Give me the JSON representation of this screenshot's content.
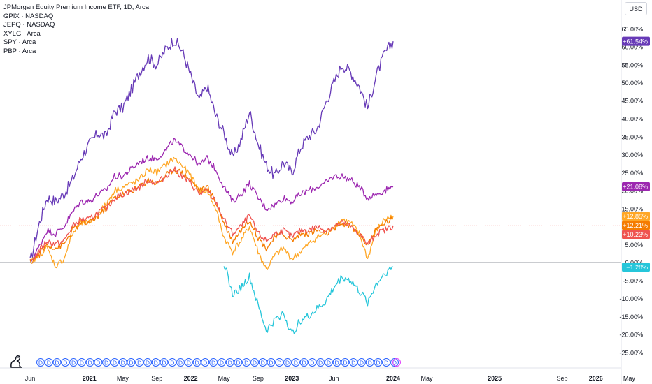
{
  "legend": {
    "main": "JPMorgan Equity Premium Income ETF, 1D, Arca",
    "symbols": [
      "GPIX · NASDAQ",
      "JEPQ · NASDAQ",
      "XYLG · Arca",
      "SPY · Arca",
      "PBP · Arca"
    ]
  },
  "currency": "USD",
  "logo_icon": "tradingview-dino-icon",
  "chart_data": {
    "type": "line",
    "title": "JPMorgan Equity Premium Income ETF, 1D, Arca",
    "y_unit": "%",
    "ylim": [
      -27,
      68
    ],
    "y_ticks": [
      -25,
      -20,
      -15,
      -10,
      -5,
      0,
      5,
      10,
      15,
      20,
      25,
      30,
      35,
      40,
      45,
      50,
      55,
      60,
      65
    ],
    "y_tick_labels": [
      "-25.00%",
      "-20.00%",
      "-15.00%",
      "-10.00%",
      "-5.00%",
      "0.00%",
      "5.00%",
      "10.00%",
      "15.00%",
      "20.00%",
      "25.00%",
      "30.00%",
      "35.00%",
      "40.00%",
      "45.00%",
      "50.00%",
      "55.00%",
      "60.00%",
      "65.00%"
    ],
    "x_range": [
      "2020-05-20",
      "2026-05-10"
    ],
    "x_ticks": [
      {
        "date": "2020-06-01",
        "label": "Jun",
        "bold": false
      },
      {
        "date": "2021-01-01",
        "label": "2021",
        "bold": true
      },
      {
        "date": "2021-05-01",
        "label": "May",
        "bold": false
      },
      {
        "date": "2021-09-01",
        "label": "Sep",
        "bold": false
      },
      {
        "date": "2022-01-01",
        "label": "2022",
        "bold": true
      },
      {
        "date": "2022-05-01",
        "label": "May",
        "bold": false
      },
      {
        "date": "2022-09-01",
        "label": "Sep",
        "bold": false
      },
      {
        "date": "2023-01-01",
        "label": "2023",
        "bold": true
      },
      {
        "date": "2023-06-01",
        "label": "Jun",
        "bold": false
      },
      {
        "date": "2024-01-01",
        "label": "2024",
        "bold": true
      },
      {
        "date": "2024-05-01",
        "label": "May",
        "bold": false
      },
      {
        "date": "2025-01-01",
        "label": "2025",
        "bold": true
      },
      {
        "date": "2025-09-01",
        "label": "Sep",
        "bold": false
      },
      {
        "date": "2026-01-01",
        "label": "2026",
        "bold": true
      },
      {
        "date": "2026-05-01",
        "label": "May",
        "bold": false
      }
    ],
    "zero_line": 0,
    "current_price_line": 10.23,
    "dividend_markers": {
      "label": "D",
      "count": 44,
      "start": "2020-06-01",
      "end": "2024-01-01"
    },
    "series": [
      {
        "color": "#673ab7",
        "last_label": "+61.54%",
        "last": 61.54,
        "points": [
          [
            "2020-06-01",
            0
          ],
          [
            "2020-07-01",
            10
          ],
          [
            "2020-08-01",
            18
          ],
          [
            "2020-09-01",
            17
          ],
          [
            "2020-10-01",
            19
          ],
          [
            "2020-11-01",
            23
          ],
          [
            "2020-12-01",
            29
          ],
          [
            "2021-01-01",
            33
          ],
          [
            "2021-02-01",
            36
          ],
          [
            "2021-03-01",
            35
          ],
          [
            "2021-04-01",
            42
          ],
          [
            "2021-05-01",
            43
          ],
          [
            "2021-06-01",
            48
          ],
          [
            "2021-07-01",
            53
          ],
          [
            "2021-08-01",
            57
          ],
          [
            "2021-09-01",
            55
          ],
          [
            "2021-10-01",
            59
          ],
          [
            "2021-11-01",
            62
          ],
          [
            "2021-12-01",
            59
          ],
          [
            "2022-01-01",
            52
          ],
          [
            "2022-02-01",
            45
          ],
          [
            "2022-03-01",
            49
          ],
          [
            "2022-04-01",
            41
          ],
          [
            "2022-05-01",
            36
          ],
          [
            "2022-06-01",
            29
          ],
          [
            "2022-07-01",
            34
          ],
          [
            "2022-08-01",
            42
          ],
          [
            "2022-09-01",
            33
          ],
          [
            "2022-10-01",
            27
          ],
          [
            "2022-11-01",
            24
          ],
          [
            "2022-12-01",
            28
          ],
          [
            "2023-01-01",
            25
          ],
          [
            "2023-02-01",
            32
          ],
          [
            "2023-03-01",
            35
          ],
          [
            "2023-04-01",
            37
          ],
          [
            "2023-05-01",
            44
          ],
          [
            "2023-06-01",
            50
          ],
          [
            "2023-07-01",
            55
          ],
          [
            "2023-08-01",
            53
          ],
          [
            "2023-09-01",
            49
          ],
          [
            "2023-10-01",
            43
          ],
          [
            "2023-11-01",
            52
          ],
          [
            "2023-12-01",
            58
          ],
          [
            "2024-01-01",
            61.54
          ]
        ]
      },
      {
        "color": "#9c27b0",
        "last_label": "+21.08%",
        "last": 21.08,
        "points": [
          [
            "2020-06-01",
            0
          ],
          [
            "2020-07-01",
            4
          ],
          [
            "2020-08-01",
            9
          ],
          [
            "2020-09-01",
            8
          ],
          [
            "2020-10-01",
            10
          ],
          [
            "2020-11-01",
            14
          ],
          [
            "2020-12-01",
            17
          ],
          [
            "2021-01-01",
            17
          ],
          [
            "2021-02-01",
            19
          ],
          [
            "2021-03-01",
            20
          ],
          [
            "2021-04-01",
            24
          ],
          [
            "2021-05-01",
            24
          ],
          [
            "2021-06-01",
            26
          ],
          [
            "2021-07-01",
            28
          ],
          [
            "2021-08-01",
            29
          ],
          [
            "2021-09-01",
            29
          ],
          [
            "2021-10-01",
            31
          ],
          [
            "2021-11-01",
            34
          ],
          [
            "2021-12-01",
            32
          ],
          [
            "2022-01-01",
            30
          ],
          [
            "2022-02-01",
            27
          ],
          [
            "2022-03-01",
            29
          ],
          [
            "2022-04-01",
            26
          ],
          [
            "2022-05-01",
            21
          ],
          [
            "2022-06-01",
            17
          ],
          [
            "2022-07-01",
            19
          ],
          [
            "2022-08-01",
            22
          ],
          [
            "2022-09-01",
            18
          ],
          [
            "2022-10-01",
            15
          ],
          [
            "2022-11-01",
            16
          ],
          [
            "2022-12-01",
            18
          ],
          [
            "2023-01-01",
            17
          ],
          [
            "2023-02-01",
            19
          ],
          [
            "2023-03-01",
            20
          ],
          [
            "2023-04-01",
            21
          ],
          [
            "2023-05-01",
            22
          ],
          [
            "2023-06-01",
            24
          ],
          [
            "2023-07-01",
            24
          ],
          [
            "2023-08-01",
            23
          ],
          [
            "2023-09-01",
            21
          ],
          [
            "2023-10-01",
            18
          ],
          [
            "2023-11-01",
            19
          ],
          [
            "2023-12-01",
            20
          ],
          [
            "2024-01-01",
            21.08
          ]
        ]
      },
      {
        "color": "#ffa726",
        "last_label": "+12.85%",
        "last": 12.85,
        "points": [
          [
            "2020-06-01",
            0
          ],
          [
            "2020-07-01",
            2
          ],
          [
            "2020-08-01",
            4
          ],
          [
            "2020-09-01",
            -1
          ],
          [
            "2020-10-01",
            1
          ],
          [
            "2020-11-01",
            8
          ],
          [
            "2020-12-01",
            11
          ],
          [
            "2021-01-01",
            11
          ],
          [
            "2021-02-01",
            14
          ],
          [
            "2021-03-01",
            16
          ],
          [
            "2021-04-01",
            20
          ],
          [
            "2021-05-01",
            21
          ],
          [
            "2021-06-01",
            22
          ],
          [
            "2021-07-01",
            23
          ],
          [
            "2021-08-01",
            26
          ],
          [
            "2021-09-01",
            25
          ],
          [
            "2021-10-01",
            27
          ],
          [
            "2021-11-01",
            29
          ],
          [
            "2021-12-01",
            27
          ],
          [
            "2022-01-01",
            24
          ],
          [
            "2022-02-01",
            20
          ],
          [
            "2022-03-01",
            20
          ],
          [
            "2022-04-01",
            15
          ],
          [
            "2022-05-01",
            7
          ],
          [
            "2022-06-01",
            3
          ],
          [
            "2022-07-01",
            6
          ],
          [
            "2022-08-01",
            10
          ],
          [
            "2022-09-01",
            3
          ],
          [
            "2022-10-01",
            -2
          ],
          [
            "2022-11-01",
            2
          ],
          [
            "2022-12-01",
            4
          ],
          [
            "2023-01-01",
            1
          ],
          [
            "2023-02-01",
            3
          ],
          [
            "2023-03-01",
            5
          ],
          [
            "2023-04-01",
            7
          ],
          [
            "2023-05-01",
            8
          ],
          [
            "2023-06-01",
            10
          ],
          [
            "2023-07-01",
            12
          ],
          [
            "2023-08-01",
            11
          ],
          [
            "2023-09-01",
            8
          ],
          [
            "2023-10-01",
            1
          ],
          [
            "2023-11-01",
            9
          ],
          [
            "2023-12-01",
            12
          ],
          [
            "2024-01-01",
            12.85
          ]
        ]
      },
      {
        "color": "#f57c00",
        "last_label": "+12.21%",
        "last": 12.21,
        "points": [
          [
            "2020-06-01",
            0
          ],
          [
            "2020-07-01",
            2
          ],
          [
            "2020-08-01",
            5
          ],
          [
            "2020-09-01",
            4
          ],
          [
            "2020-10-01",
            5
          ],
          [
            "2020-11-01",
            9
          ],
          [
            "2020-12-01",
            11
          ],
          [
            "2021-01-01",
            11
          ],
          [
            "2021-02-01",
            13
          ],
          [
            "2021-03-01",
            15
          ],
          [
            "2021-04-01",
            18
          ],
          [
            "2021-05-01",
            19
          ],
          [
            "2021-06-01",
            20
          ],
          [
            "2021-07-01",
            21
          ],
          [
            "2021-08-01",
            23
          ],
          [
            "2021-09-01",
            22
          ],
          [
            "2021-10-01",
            24
          ],
          [
            "2021-11-01",
            26
          ],
          [
            "2021-12-01",
            25
          ],
          [
            "2022-01-01",
            23
          ],
          [
            "2022-02-01",
            20
          ],
          [
            "2022-03-01",
            21
          ],
          [
            "2022-04-01",
            17
          ],
          [
            "2022-05-01",
            11
          ],
          [
            "2022-06-01",
            6
          ],
          [
            "2022-07-01",
            9
          ],
          [
            "2022-08-01",
            12
          ],
          [
            "2022-09-01",
            7
          ],
          [
            "2022-10-01",
            4
          ],
          [
            "2022-11-01",
            7
          ],
          [
            "2022-12-01",
            8
          ],
          [
            "2023-01-01",
            6
          ],
          [
            "2023-02-01",
            8
          ],
          [
            "2023-03-01",
            8
          ],
          [
            "2023-04-01",
            9
          ],
          [
            "2023-05-01",
            8
          ],
          [
            "2023-06-01",
            9
          ],
          [
            "2023-07-01",
            11
          ],
          [
            "2023-08-01",
            10
          ],
          [
            "2023-09-01",
            8
          ],
          [
            "2023-10-01",
            5
          ],
          [
            "2023-11-01",
            9
          ],
          [
            "2023-12-01",
            11
          ],
          [
            "2024-01-01",
            12.21
          ]
        ]
      },
      {
        "color": "#ef5350",
        "last_label": "+10.23%",
        "last": 10.23,
        "points": [
          [
            "2020-06-01",
            0
          ],
          [
            "2020-07-01",
            3
          ],
          [
            "2020-08-01",
            6
          ],
          [
            "2020-09-01",
            5
          ],
          [
            "2020-10-01",
            6
          ],
          [
            "2020-11-01",
            10
          ],
          [
            "2020-12-01",
            12
          ],
          [
            "2021-01-01",
            12
          ],
          [
            "2021-02-01",
            14
          ],
          [
            "2021-03-01",
            15
          ],
          [
            "2021-04-01",
            18
          ],
          [
            "2021-05-01",
            19
          ],
          [
            "2021-06-01",
            20
          ],
          [
            "2021-07-01",
            21
          ],
          [
            "2021-08-01",
            23
          ],
          [
            "2021-09-01",
            22
          ],
          [
            "2021-10-01",
            24
          ],
          [
            "2021-11-01",
            26
          ],
          [
            "2021-12-01",
            24
          ],
          [
            "2022-01-01",
            22
          ],
          [
            "2022-02-01",
            19
          ],
          [
            "2022-03-01",
            20
          ],
          [
            "2022-04-01",
            17
          ],
          [
            "2022-05-01",
            12
          ],
          [
            "2022-06-01",
            8
          ],
          [
            "2022-07-01",
            10
          ],
          [
            "2022-08-01",
            13
          ],
          [
            "2022-09-01",
            8
          ],
          [
            "2022-10-01",
            6
          ],
          [
            "2022-11-01",
            8
          ],
          [
            "2022-12-01",
            9
          ],
          [
            "2023-01-01",
            7
          ],
          [
            "2023-02-01",
            9
          ],
          [
            "2023-03-01",
            9
          ],
          [
            "2023-04-01",
            10
          ],
          [
            "2023-05-01",
            9
          ],
          [
            "2023-06-01",
            10
          ],
          [
            "2023-07-01",
            11
          ],
          [
            "2023-08-01",
            10
          ],
          [
            "2023-09-01",
            8
          ],
          [
            "2023-10-01",
            5
          ],
          [
            "2023-11-01",
            8
          ],
          [
            "2023-12-01",
            9
          ],
          [
            "2024-01-01",
            10.23
          ]
        ]
      },
      {
        "color": "#26c6da",
        "last_label": "−1.28%",
        "last": -1.28,
        "points": [
          [
            "2022-05-01",
            0
          ],
          [
            "2022-06-01",
            -9
          ],
          [
            "2022-07-01",
            -7
          ],
          [
            "2022-08-01",
            -4
          ],
          [
            "2022-09-01",
            -12
          ],
          [
            "2022-10-01",
            -19
          ],
          [
            "2022-11-01",
            -16
          ],
          [
            "2022-12-01",
            -14
          ],
          [
            "2023-01-01",
            -20
          ],
          [
            "2023-02-01",
            -16
          ],
          [
            "2023-03-01",
            -15
          ],
          [
            "2023-04-01",
            -13
          ],
          [
            "2023-05-01",
            -11
          ],
          [
            "2023-06-01",
            -7
          ],
          [
            "2023-07-01",
            -4
          ],
          [
            "2023-08-01",
            -5
          ],
          [
            "2023-09-01",
            -8
          ],
          [
            "2023-10-01",
            -11
          ],
          [
            "2023-11-01",
            -6
          ],
          [
            "2023-12-01",
            -3
          ],
          [
            "2024-01-01",
            -1.28
          ]
        ]
      }
    ]
  }
}
